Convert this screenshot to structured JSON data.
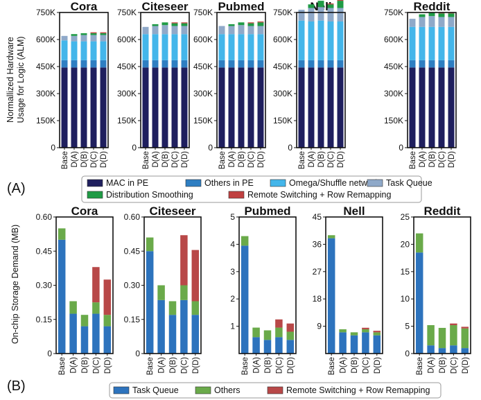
{
  "panel_labels": [
    "(A)",
    "(B)"
  ],
  "colors": {
    "mac_in_pe": "#1f1f5e",
    "others_in_pe": "#2e7ec2",
    "omega_shuffle": "#44b6ea",
    "task_queue_a": "#8fa9c9",
    "distribution_smoothing": "#1f9b45",
    "remote_switching": "#c04040",
    "task_queue_b": "#2d73bd",
    "others_b": "#6aaa4a",
    "remote_switching_b": "#b84848"
  },
  "legend_a": [
    {
      "label": "MAC in PE",
      "color": "#1f1f5e"
    },
    {
      "label": "Others in PE",
      "color": "#2e7ec2"
    },
    {
      "label": "Omega/Shuffle network",
      "color": "#44b6ea"
    },
    {
      "label": "Task Queue",
      "color": "#8fa9c9"
    },
    {
      "label": "Distribution Smoothing",
      "color": "#1f9b45"
    },
    {
      "label": "Remote Switching + Row Remapping",
      "color": "#c04040"
    }
  ],
  "legend_b": [
    {
      "label": "Task Queue",
      "color": "#2d73bd"
    },
    {
      "label": "Others",
      "color": "#6aaa4a"
    },
    {
      "label": "Remote Switching + Row Remapping",
      "color": "#b84848"
    }
  ],
  "chart_data": [
    {
      "type": "bar",
      "stacked": true,
      "row": "A",
      "ylabel": "Normallized Hardware\nUsage for Logic (ALM)",
      "categories": [
        "Base",
        "D(A)",
        "D(B)",
        "D(C)",
        "D(D)"
      ],
      "ylim": [
        0,
        750000
      ],
      "series_names": [
        "MAC in PE",
        "Others in PE",
        "Omega/Shuffle network",
        "Task Queue",
        "Distribution Smoothing",
        "Remote Switching + Row Remapping"
      ],
      "charts": [
        {
          "title": "Cora",
          "yticks": [
            0,
            150000,
            300000,
            450000,
            600000,
            750000
          ],
          "ytick_labels": [
            "0",
            "150K",
            "300K",
            "450K",
            "600K",
            "750K"
          ],
          "stacks": [
            [
              445000,
              40000,
              110000,
              25000,
              0,
              0
            ],
            [
              445000,
              40000,
              105000,
              30000,
              10000,
              0
            ],
            [
              445000,
              40000,
              105000,
              35000,
              10000,
              0
            ],
            [
              445000,
              40000,
              105000,
              35000,
              10000,
              5000
            ],
            [
              445000,
              40000,
              105000,
              35000,
              10000,
              5000
            ]
          ]
        },
        {
          "title": "Citeseer",
          "yticks": [
            0,
            150000,
            300000,
            450000,
            600000,
            750000
          ],
          "ytick_labels": [
            "0",
            "150K",
            "300K",
            "450K",
            "600K",
            "750K"
          ],
          "stacks": [
            [
              445000,
              40000,
              145000,
              40000,
              0,
              0
            ],
            [
              445000,
              40000,
              145000,
              45000,
              10000,
              0
            ],
            [
              445000,
              40000,
              145000,
              50000,
              15000,
              0
            ],
            [
              445000,
              40000,
              145000,
              45000,
              15000,
              5000
            ],
            [
              445000,
              40000,
              145000,
              45000,
              15000,
              5000
            ]
          ]
        },
        {
          "title": "Pubmed",
          "yticks": [
            0,
            150000,
            300000,
            450000,
            600000,
            750000
          ],
          "ytick_labels": [
            "0",
            "150K",
            "300K",
            "450K",
            "600K",
            "750K"
          ],
          "stacks": [
            [
              445000,
              40000,
              145000,
              45000,
              0,
              0
            ],
            [
              445000,
              40000,
              145000,
              45000,
              10000,
              0
            ],
            [
              445000,
              40000,
              145000,
              50000,
              15000,
              0
            ],
            [
              445000,
              40000,
              145000,
              45000,
              15000,
              5000
            ],
            [
              445000,
              40000,
              145000,
              45000,
              20000,
              5000
            ]
          ]
        },
        {
          "title": "Nell",
          "yticks": [
            0,
            150000,
            300000,
            450000,
            600000,
            750000
          ],
          "ytick_labels": [
            "0",
            "150K",
            "300K",
            "450K",
            "600K",
            "750K"
          ],
          "stacks": [
            [
              445000,
              40000,
              220000,
              60000,
              0,
              0
            ],
            [
              445000,
              40000,
              215000,
              75000,
              20000,
              0
            ],
            [
              445000,
              40000,
              220000,
              75000,
              35000,
              0
            ],
            [
              445000,
              40000,
              215000,
              75000,
              20000,
              5000
            ],
            [
              445000,
              40000,
              215000,
              75000,
              40000,
              5000
            ]
          ]
        },
        {
          "title": "Reddit",
          "yticks": [
            0,
            150000,
            300000,
            450000,
            600000,
            750000
          ],
          "ytick_labels": [
            "0",
            "150K",
            "300K",
            "450K",
            "600K",
            "750K"
          ],
          "stacks": [
            [
              445000,
              40000,
              185000,
              45000,
              0,
              0
            ],
            [
              445000,
              40000,
              185000,
              55000,
              15000,
              0
            ],
            [
              445000,
              40000,
              185000,
              60000,
              20000,
              0
            ],
            [
              445000,
              40000,
              185000,
              55000,
              20000,
              5000
            ],
            [
              445000,
              40000,
              185000,
              55000,
              20000,
              5000
            ]
          ]
        }
      ]
    },
    {
      "type": "bar",
      "stacked": true,
      "row": "B",
      "ylabel": "On-chip Storage Demand (MB)",
      "categories": [
        "Base",
        "D(A)",
        "D(B)",
        "D(C)",
        "D(D)"
      ],
      "series_names": [
        "Task Queue",
        "Others",
        "Remote Switching + Row Remapping"
      ],
      "charts": [
        {
          "title": "Cora",
          "ylim": [
            0,
            0.6
          ],
          "yticks": [
            0,
            0.15,
            0.3,
            0.45,
            0.6
          ],
          "ytick_labels": [
            "0",
            "0.15",
            "0.30",
            "0.45",
            "0.60"
          ],
          "stacks": [
            [
              0.5,
              0.05,
              0
            ],
            [
              0.175,
              0.055,
              0
            ],
            [
              0.12,
              0.05,
              0
            ],
            [
              0.175,
              0.05,
              0.155
            ],
            [
              0.12,
              0.05,
              0.155
            ]
          ]
        },
        {
          "title": "Citeseer",
          "ylim": [
            0,
            0.6
          ],
          "yticks": [
            0,
            0.15,
            0.3,
            0.45,
            0.6
          ],
          "ytick_labels": [
            "0",
            "0.15",
            "0.30",
            "0.45",
            "0.60"
          ],
          "stacks": [
            [
              0.45,
              0.06,
              0
            ],
            [
              0.235,
              0.065,
              0
            ],
            [
              0.17,
              0.06,
              0
            ],
            [
              0.235,
              0.065,
              0.22
            ],
            [
              0.17,
              0.06,
              0.225
            ]
          ]
        },
        {
          "title": "Pubmed",
          "ylim": [
            0,
            5
          ],
          "yticks": [
            1,
            2,
            3,
            4,
            5
          ],
          "ytick_labels": [
            "1",
            "2",
            "3",
            "4",
            "5"
          ],
          "stacks": [
            [
              3.95,
              0.35,
              0
            ],
            [
              0.6,
              0.35,
              0
            ],
            [
              0.5,
              0.35,
              0
            ],
            [
              0.6,
              0.35,
              0.3
            ],
            [
              0.5,
              0.3,
              0.3
            ]
          ]
        },
        {
          "title": "Nell",
          "ylim": [
            0,
            45
          ],
          "yticks": [
            9,
            18,
            27,
            36,
            45
          ],
          "ytick_labels": [
            "9",
            "18",
            "27",
            "36",
            "45"
          ],
          "stacks": [
            [
              38,
              1,
              0
            ],
            [
              7,
              1,
              0
            ],
            [
              6,
              1,
              0
            ],
            [
              7,
              1,
              0.5
            ],
            [
              6,
              1,
              0.5
            ]
          ]
        },
        {
          "title": "Reddit",
          "ylim": [
            0,
            25
          ],
          "yticks": [
            0,
            5,
            10,
            15,
            20,
            25
          ],
          "ytick_labels": [
            "0",
            "5",
            "10",
            "15",
            "20",
            "25"
          ],
          "stacks": [
            [
              18.5,
              3.5,
              0
            ],
            [
              1.5,
              3.7,
              0
            ],
            [
              1.0,
              3.7,
              0
            ],
            [
              1.5,
              3.7,
              0.3
            ],
            [
              1.0,
              3.6,
              0.3
            ]
          ]
        }
      ]
    }
  ]
}
